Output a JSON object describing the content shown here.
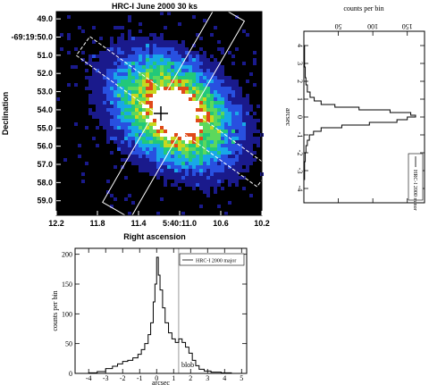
{
  "chart_data": [
    {
      "type": "heatmap",
      "title": "HRC-I  June 2000  30 ks",
      "xlabel": "Right ascension",
      "ylabel": "Declination",
      "x_ticks": [
        "12.2",
        "11.8",
        "11.4",
        "5:40:11.0",
        "10.6",
        "10.2"
      ],
      "y_ticks": [
        "49.0",
        "-69:19:50.0",
        "51.0",
        "52.0",
        "53.0",
        "54.0",
        "55.0",
        "56.0",
        "57.0",
        "58.0",
        "59.0"
      ],
      "x_range": [
        12.2,
        10.2
      ],
      "y_range": [
        48.6,
        59.8
      ],
      "colormap": [
        "#000000",
        "#1a1a8c",
        "#2850e0",
        "#18a8e8",
        "#22c87a",
        "#5cd85c",
        "#c8d81e",
        "#e04a1a",
        "#ffffff"
      ],
      "center": [
        11.06,
        54.1
      ],
      "overlays": "major/minor axis extraction boxes, center cross"
    },
    {
      "type": "line",
      "orientation": "vertical",
      "top_label": "counts per bin",
      "ylabel": "arcsec",
      "legend": "HRC-I 2000 minor",
      "count_ticks": [
        50,
        100,
        150
      ],
      "count_range": [
        0,
        175
      ],
      "pos_ticks": [
        -4,
        -3,
        -2,
        -1,
        0,
        1,
        2,
        3,
        4
      ],
      "pos_range": [
        -4.8,
        4.8
      ],
      "values": [
        [
          -4.6,
          0
        ],
        [
          -4.0,
          0
        ],
        [
          -3.5,
          1
        ],
        [
          -3.0,
          1
        ],
        [
          -2.5,
          2
        ],
        [
          -2.0,
          3
        ],
        [
          -1.6,
          5
        ],
        [
          -1.3,
          8
        ],
        [
          -1.0,
          14
        ],
        [
          -0.8,
          25
        ],
        [
          -0.6,
          55
        ],
        [
          -0.45,
          95
        ],
        [
          -0.3,
          135
        ],
        [
          -0.15,
          150
        ],
        [
          0.0,
          162
        ],
        [
          0.1,
          155
        ],
        [
          0.25,
          125
        ],
        [
          0.4,
          80
        ],
        [
          0.55,
          45
        ],
        [
          0.7,
          25
        ],
        [
          0.9,
          15
        ],
        [
          1.1,
          9
        ],
        [
          1.4,
          5
        ],
        [
          1.8,
          3
        ],
        [
          2.2,
          2
        ],
        [
          2.8,
          1
        ],
        [
          3.4,
          1
        ],
        [
          4.0,
          0
        ],
        [
          4.6,
          0
        ]
      ]
    },
    {
      "type": "line",
      "xlabel": "arcsec",
      "ylabel": "counts per bin",
      "legend": "HRC-I 2000 major",
      "annotation": "blob",
      "annotation_x": 1.3,
      "xlim": [
        -4.8,
        5.3
      ],
      "ylim": [
        0,
        210
      ],
      "x_ticks": [
        -4,
        -3,
        -2,
        -1,
        0,
        1,
        2,
        3,
        4,
        5
      ],
      "y_ticks": [
        0,
        50,
        100,
        150,
        200
      ],
      "values": [
        [
          -4.8,
          0
        ],
        [
          -4.5,
          0
        ],
        [
          -4.0,
          1
        ],
        [
          -3.5,
          3
        ],
        [
          -3.0,
          8
        ],
        [
          -2.6,
          12
        ],
        [
          -2.3,
          16
        ],
        [
          -2.0,
          20
        ],
        [
          -1.7,
          22
        ],
        [
          -1.4,
          26
        ],
        [
          -1.1,
          32
        ],
        [
          -0.9,
          40
        ],
        [
          -0.7,
          50
        ],
        [
          -0.5,
          65
        ],
        [
          -0.35,
          85
        ],
        [
          -0.2,
          120
        ],
        [
          -0.1,
          150
        ],
        [
          0.0,
          195
        ],
        [
          0.1,
          165
        ],
        [
          0.2,
          140
        ],
        [
          0.35,
          110
        ],
        [
          0.5,
          85
        ],
        [
          0.7,
          68
        ],
        [
          0.9,
          58
        ],
        [
          1.1,
          52
        ],
        [
          1.3,
          58
        ],
        [
          1.5,
          52
        ],
        [
          1.7,
          44
        ],
        [
          1.9,
          34
        ],
        [
          2.1,
          22
        ],
        [
          2.3,
          13
        ],
        [
          2.5,
          7
        ],
        [
          2.8,
          4
        ],
        [
          3.2,
          2
        ],
        [
          3.8,
          1
        ],
        [
          4.4,
          0
        ],
        [
          5.3,
          0
        ]
      ]
    }
  ],
  "colors": {
    "axis": "#000000",
    "frame_fill": "#ffffff"
  }
}
